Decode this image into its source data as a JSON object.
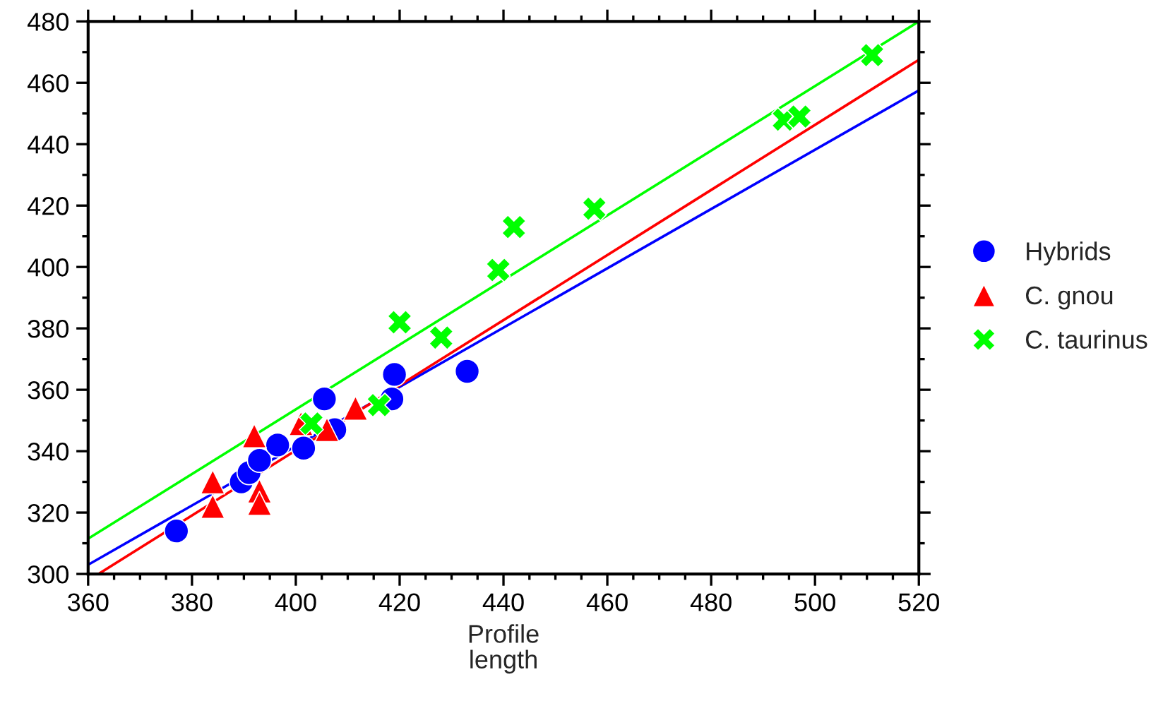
{
  "chart_data": {
    "type": "scatter",
    "xlabel": "Profile\nlength",
    "xlim": [
      360,
      520
    ],
    "ylim": [
      300,
      480
    ],
    "xticks": [
      360,
      380,
      400,
      420,
      440,
      460,
      480,
      500,
      520
    ],
    "yticks": [
      300,
      320,
      340,
      360,
      380,
      400,
      420,
      440,
      460,
      480
    ],
    "grid": false,
    "legend": "right",
    "series": [
      {
        "name": "Hybrids",
        "color": "#0000ff",
        "marker": "circle",
        "x": [
          377,
          389.5,
          391,
          393,
          396.5,
          401.5,
          405.5,
          407.5,
          418.5,
          419,
          433
        ],
        "values": [
          314,
          330,
          333,
          337,
          342,
          341,
          357,
          347,
          357,
          365,
          366
        ]
      },
      {
        "name": "C. gnou",
        "color": "#ff0000",
        "marker": "triangle",
        "x": [
          384,
          384,
          392,
          393,
          393,
          401,
          405,
          406,
          411.5
        ],
        "values": [
          330,
          322,
          345,
          327,
          323,
          349,
          null,
          347,
          354
        ]
      },
      {
        "name": "C. taurinus",
        "color": "#00ff00",
        "marker": "cross",
        "x": [
          403,
          416,
          420,
          428,
          439,
          442,
          457.5,
          494,
          496,
          497,
          511
        ],
        "values": [
          349,
          355,
          382,
          377,
          399,
          413,
          419,
          448,
          null,
          449,
          469
        ]
      },
      {
        "type": "line",
        "color": "#0000ff",
        "marker": "none",
        "x": [
          360,
          520
        ],
        "values": [
          303,
          457.5
        ]
      },
      {
        "type": "line",
        "color": "#ff0000",
        "marker": "none",
        "x": [
          362,
          520
        ],
        "values": [
          300,
          467.5
        ]
      },
      {
        "type": "line",
        "color": "#00ff00",
        "marker": "none",
        "x": [
          360,
          520
        ],
        "values": [
          311.5,
          480
        ]
      }
    ]
  }
}
